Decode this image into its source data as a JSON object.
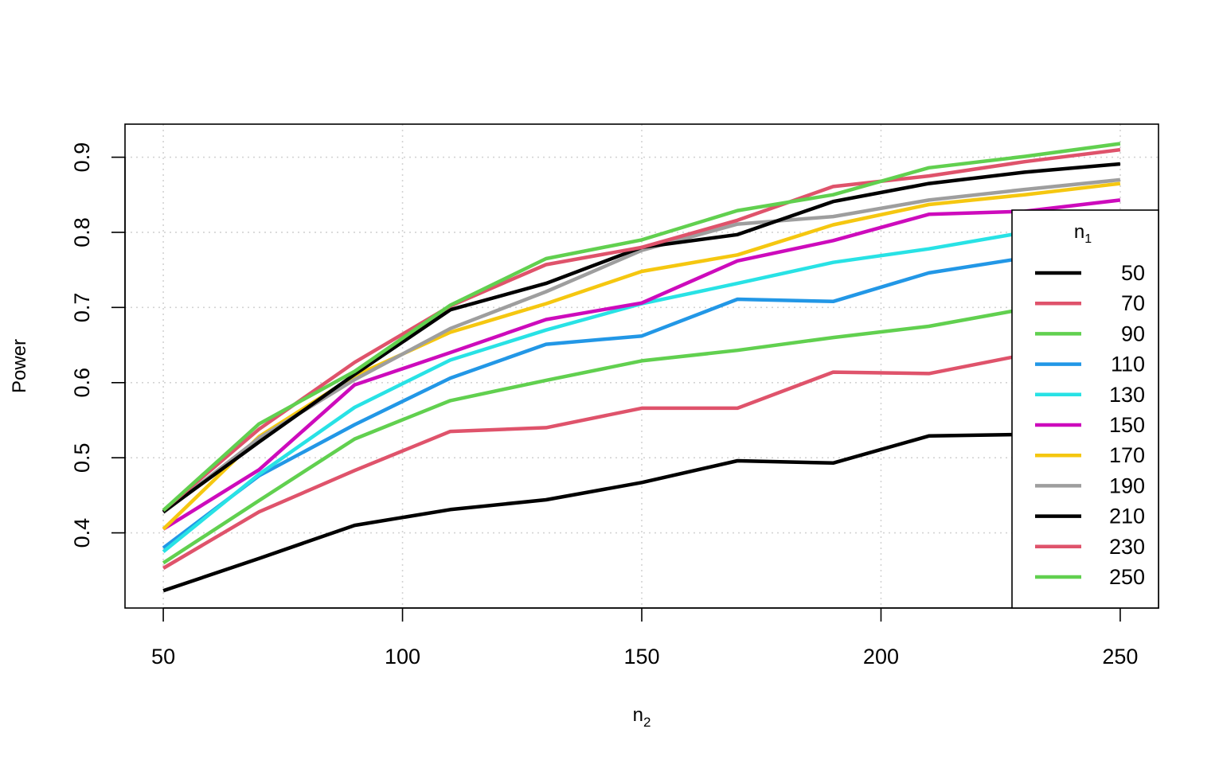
{
  "chart_data": {
    "type": "line",
    "xlabel": "n",
    "xlabel_sub": "2",
    "ylabel": "Power",
    "xlim": [
      42,
      258
    ],
    "ylim": [
      0.3,
      0.944
    ],
    "x_ticks": [
      50,
      100,
      150,
      200,
      250
    ],
    "x_tick_labels": [
      "50",
      "100",
      "150",
      "200",
      "250"
    ],
    "y_ticks": [
      0.4,
      0.5,
      0.6,
      0.7,
      0.8,
      0.9
    ],
    "y_tick_labels": [
      "0.4",
      "0.5",
      "0.6",
      "0.7",
      "0.8",
      "0.9"
    ],
    "grid": true,
    "legend": {
      "position": "right",
      "title": "n",
      "title_sub": "1"
    },
    "x": [
      50,
      70,
      90,
      110,
      130,
      150,
      170,
      190,
      210,
      230,
      250
    ],
    "series": [
      {
        "name": "50",
        "color": "#000000",
        "values": [
          0.323,
          0.366,
          0.41,
          0.431,
          0.444,
          0.467,
          0.496,
          0.493,
          0.529,
          0.531,
          0.56
        ]
      },
      {
        "name": "70",
        "color": "#DF536B",
        "values": [
          0.353,
          0.428,
          0.483,
          0.535,
          0.54,
          0.566,
          0.566,
          0.614,
          0.612,
          0.637,
          0.667
        ]
      },
      {
        "name": "90",
        "color": "#61D04F",
        "values": [
          0.36,
          0.443,
          0.525,
          0.576,
          0.603,
          0.629,
          0.643,
          0.66,
          0.675,
          0.698,
          0.722
        ]
      },
      {
        "name": "110",
        "color": "#2297E6",
        "values": [
          0.38,
          0.476,
          0.544,
          0.606,
          0.651,
          0.662,
          0.711,
          0.708,
          0.746,
          0.766,
          0.788
        ]
      },
      {
        "name": "130",
        "color": "#28E2E5",
        "values": [
          0.375,
          0.478,
          0.567,
          0.63,
          0.67,
          0.705,
          0.732,
          0.76,
          0.778,
          0.8,
          0.812
        ]
      },
      {
        "name": "150",
        "color": "#CD0BBC",
        "values": [
          0.405,
          0.484,
          0.597,
          0.64,
          0.684,
          0.706,
          0.762,
          0.789,
          0.824,
          0.828,
          0.843
        ]
      },
      {
        "name": "170",
        "color": "#F5C710",
        "values": [
          0.405,
          0.528,
          0.609,
          0.667,
          0.705,
          0.748,
          0.77,
          0.81,
          0.837,
          0.85,
          0.865
        ]
      },
      {
        "name": "190",
        "color": "#9E9E9E",
        "values": [
          0.427,
          0.526,
          0.604,
          0.672,
          0.721,
          0.776,
          0.811,
          0.821,
          0.843,
          0.857,
          0.87
        ]
      },
      {
        "name": "210",
        "color": "#000000",
        "values": [
          0.428,
          0.521,
          0.611,
          0.697,
          0.732,
          0.78,
          0.797,
          0.841,
          0.865,
          0.88,
          0.891
        ]
      },
      {
        "name": "230",
        "color": "#DF536B",
        "values": [
          0.43,
          0.538,
          0.627,
          0.702,
          0.757,
          0.78,
          0.816,
          0.861,
          0.875,
          0.894,
          0.91
        ]
      },
      {
        "name": "250",
        "color": "#61D04F",
        "values": [
          0.43,
          0.545,
          0.615,
          0.703,
          0.765,
          0.79,
          0.829,
          0.85,
          0.886,
          0.901,
          0.918
        ]
      }
    ]
  }
}
